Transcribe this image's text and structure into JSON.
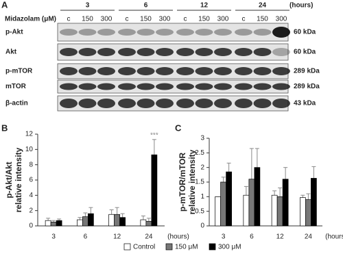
{
  "blot": {
    "label": "A",
    "treatment": "Midazolam (μM)",
    "time_unit": "(hours)",
    "times": [
      "3",
      "6",
      "12",
      "24"
    ],
    "doses": [
      "c",
      "150",
      "300"
    ],
    "rows": [
      {
        "name": "p-Akt",
        "size": "60 kDa"
      },
      {
        "name": "Akt",
        "size": "60 kDa"
      },
      {
        "name": "p-mTOR",
        "size": "289 kDa"
      },
      {
        "name": "mTOR",
        "size": "289 kDa"
      },
      {
        "name": "β-actin",
        "size": "43 kDa"
      }
    ]
  },
  "chart_data": [
    {
      "type": "bar",
      "label": "B",
      "ylabel": [
        "p-Akt/Akt",
        "relative intensity"
      ],
      "xlabel": "(hours)",
      "categories": [
        "3",
        "6",
        "12",
        "24"
      ],
      "ylim": [
        0,
        12
      ],
      "yticks": [
        0,
        2,
        4,
        6,
        8,
        10,
        12
      ],
      "annotation": "***",
      "series": [
        {
          "name": "Control",
          "color": "#ffffff",
          "values": [
            0.7,
            0.8,
            1.5,
            0.8
          ],
          "errors": [
            0.3,
            0.3,
            0.6,
            0.5
          ]
        },
        {
          "name": "150 μM",
          "color": "#777777",
          "values": [
            0.5,
            1.2,
            1.5,
            0.6
          ],
          "errors": [
            0.2,
            0.5,
            0.9,
            0.4
          ]
        },
        {
          "name": "300 μM",
          "color": "#000000",
          "values": [
            0.7,
            1.6,
            1.1,
            9.3
          ],
          "errors": [
            0.2,
            0.8,
            0.5,
            2.0
          ]
        }
      ]
    },
    {
      "type": "bar",
      "label": "C",
      "ylabel": [
        "p-mTOR/mTOR",
        "relative intensity"
      ],
      "xlabel": "(hours)",
      "categories": [
        "3",
        "6",
        "12",
        "24"
      ],
      "ylim": [
        0,
        3
      ],
      "yticks": [
        0,
        0.5,
        1,
        1.5,
        2,
        2.5,
        3
      ],
      "series": [
        {
          "name": "Control",
          "color": "#ffffff",
          "values": [
            1,
            1.05,
            1.05,
            0.97
          ],
          "errors": [
            0,
            0.3,
            0.15,
            0.08
          ]
        },
        {
          "name": "150 μM",
          "color": "#777777",
          "values": [
            1.5,
            1.6,
            1.0,
            0.9
          ],
          "errors": [
            0.17,
            1.05,
            0.3,
            0.2
          ]
        },
        {
          "name": "300 μM",
          "color": "#000000",
          "values": [
            1.85,
            2.0,
            1.6,
            1.63
          ],
          "errors": [
            0.3,
            0.65,
            0.4,
            0.4
          ]
        }
      ]
    }
  ]
}
